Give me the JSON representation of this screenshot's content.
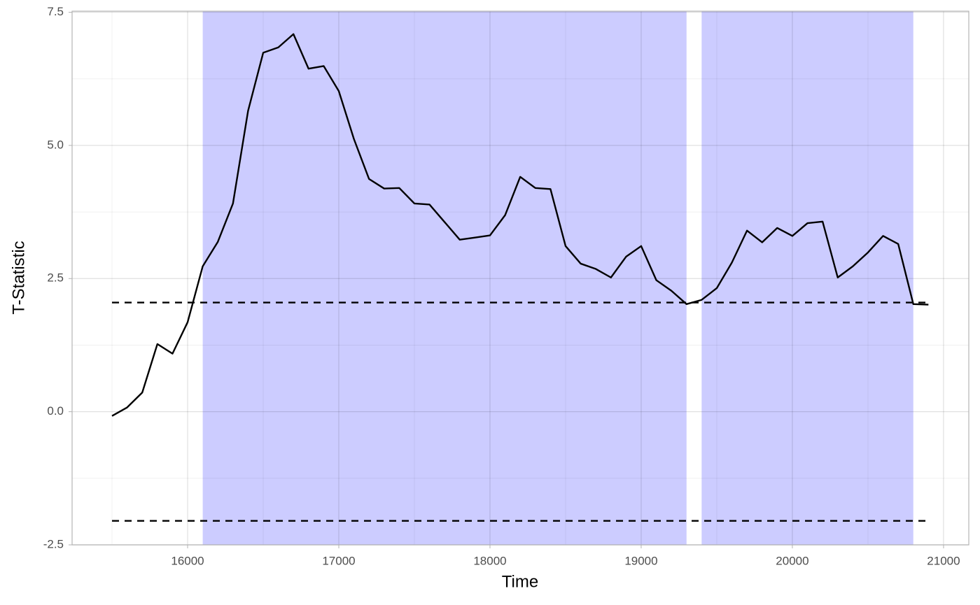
{
  "chart_data": {
    "type": "line",
    "x_label": "Time",
    "y_label": "T-Statistic",
    "x": [
      15500,
      15600,
      15700,
      15800,
      15900,
      16000,
      16100,
      16200,
      16300,
      16400,
      16500,
      16600,
      16700,
      16800,
      16900,
      17000,
      17100,
      17200,
      17300,
      17400,
      17500,
      17600,
      17700,
      17800,
      17900,
      18000,
      18100,
      18200,
      18300,
      18400,
      18500,
      18600,
      18700,
      18800,
      18900,
      19000,
      19100,
      19200,
      19300,
      19400,
      19500,
      19600,
      19700,
      19800,
      19900,
      20000,
      20100,
      20200,
      20300,
      20400,
      20500,
      20600,
      20700,
      20800,
      20900
    ],
    "series": [
      {
        "color": "#000000",
        "values": [
          -0.08,
          0.08,
          0.36,
          1.27,
          1.09,
          1.68,
          2.73,
          3.19,
          3.91,
          5.65,
          6.74,
          6.84,
          7.09,
          6.44,
          6.49,
          6.02,
          5.12,
          4.37,
          4.19,
          4.2,
          3.91,
          3.89,
          3.56,
          3.23,
          3.27,
          3.31,
          3.69,
          4.41,
          4.2,
          4.18,
          3.11,
          2.78,
          2.68,
          2.52,
          2.91,
          3.11,
          2.47,
          2.27,
          2.02,
          2.1,
          2.32,
          2.8,
          3.4,
          3.18,
          3.45,
          3.3,
          3.54,
          3.57,
          2.52,
          2.73,
          2.99,
          3.3,
          3.15,
          2.02,
          2.01
        ]
      }
    ],
    "shaded_regions": [
      {
        "start": 16100,
        "end": 19300
      },
      {
        "start": 19400,
        "end": 20800
      }
    ],
    "shade_color": "#ccccff",
    "hlines": [
      2.05,
      -2.05
    ],
    "xlim": [
      15236,
      21167
    ],
    "ylim": [
      -2.5,
      7.52
    ],
    "xticks": [
      16000,
      17000,
      18000,
      19000,
      20000,
      21000
    ],
    "xminor": [
      15500,
      16500,
      17500,
      18500,
      19500,
      20500
    ],
    "yticks": [
      -2.5,
      {
        "value": 0,
        "label": "0.0"
      },
      2.5,
      {
        "value": 5,
        "label": "5.0"
      },
      7.5
    ],
    "yminor": [
      -1.25,
      1.25,
      3.75,
      6.25
    ],
    "grid": true
  }
}
